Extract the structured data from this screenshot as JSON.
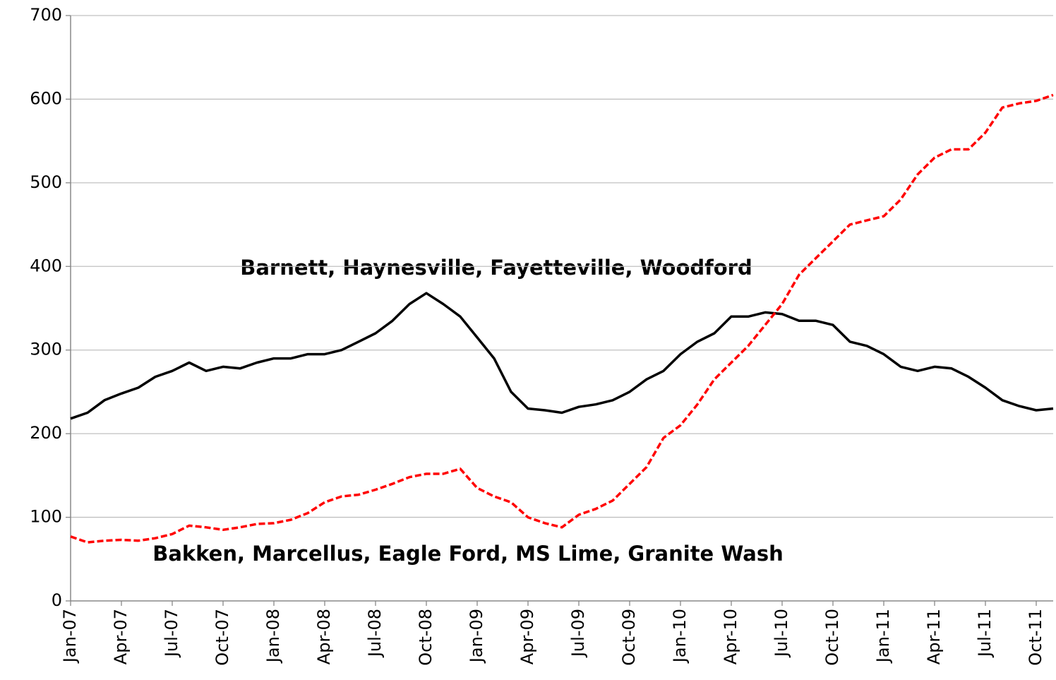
{
  "chart_data": {
    "type": "line",
    "categories": [
      "Jan-07",
      null,
      null,
      "Apr-07",
      null,
      null,
      "Jul-07",
      null,
      null,
      "Oct-07",
      null,
      null,
      "Jan-08",
      null,
      null,
      "Apr-08",
      null,
      null,
      "Jul-08",
      null,
      null,
      "Oct-08",
      null,
      null,
      "Jan-09",
      null,
      null,
      "Apr-09",
      null,
      null,
      "Jul-09",
      null,
      null,
      "Oct-09",
      null,
      null,
      "Jan-10",
      null,
      null,
      "Apr-10",
      null,
      null,
      "Jul-10",
      null,
      null,
      "Oct-10",
      null,
      null,
      "Jan-11",
      null,
      null,
      "Apr-11",
      null,
      null,
      "Jul-11",
      null,
      null,
      "Oct-11",
      null
    ],
    "series": [
      {
        "name": "Barnett, Haynesville, Fayetteville, Woodford",
        "color": "#000000",
        "dash": false,
        "values": [
          218,
          225,
          240,
          248,
          255,
          268,
          275,
          285,
          275,
          280,
          278,
          285,
          290,
          290,
          295,
          295,
          300,
          310,
          320,
          335,
          355,
          368,
          355,
          340,
          315,
          290,
          250,
          230,
          228,
          225,
          232,
          235,
          240,
          250,
          265,
          275,
          295,
          310,
          320,
          340,
          340,
          345,
          343,
          335,
          335,
          330,
          310,
          305,
          295,
          280,
          275,
          280,
          278,
          268,
          255,
          240,
          233,
          228,
          230
        ]
      },
      {
        "name": "Bakken, Marcellus, Eagle Ford, MS Lime, Granite Wash",
        "color": "#ff0000",
        "dash": true,
        "values": [
          77,
          70,
          72,
          73,
          72,
          75,
          80,
          90,
          88,
          85,
          88,
          92,
          93,
          97,
          105,
          118,
          125,
          127,
          133,
          140,
          148,
          152,
          152,
          158,
          135,
          125,
          118,
          100,
          93,
          88,
          103,
          110,
          120,
          140,
          160,
          195,
          210,
          235,
          265,
          285,
          305,
          330,
          355,
          390,
          410,
          430,
          450,
          455,
          460,
          480,
          510,
          530,
          540,
          540,
          560,
          590,
          595,
          598,
          605
        ]
      }
    ],
    "ylim": [
      0,
      700
    ],
    "yticks": [
      0,
      100,
      200,
      300,
      400,
      500,
      600,
      700
    ],
    "grid": true
  }
}
